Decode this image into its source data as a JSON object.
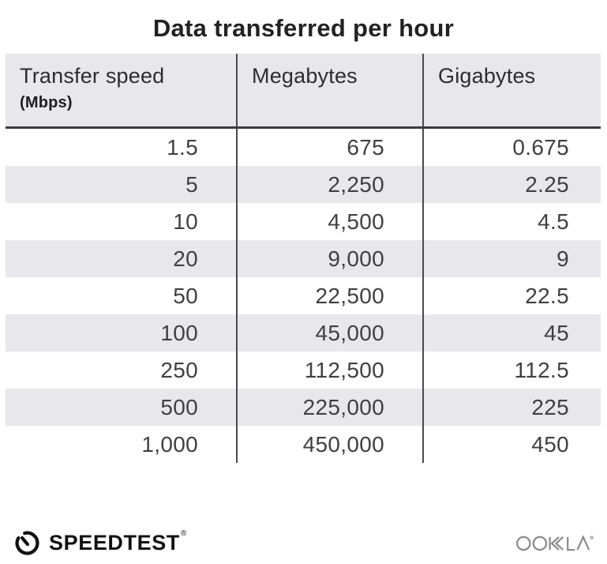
{
  "title": "Data transferred per hour",
  "table": {
    "columns": [
      {
        "label": "Transfer speed",
        "sublabel": "(Mbps)"
      },
      {
        "label": "Megabytes"
      },
      {
        "label": "Gigabytes"
      }
    ],
    "rows": [
      [
        "1.5",
        "675",
        "0.675"
      ],
      [
        "5",
        "2,250",
        "2.25"
      ],
      [
        "10",
        "4,500",
        "4.5"
      ],
      [
        "20",
        "9,000",
        "9"
      ],
      [
        "50",
        "22,500",
        "22.5"
      ],
      [
        "100",
        "45,000",
        "45"
      ],
      [
        "250",
        "112,500",
        "112.5"
      ],
      [
        "500",
        "225,000",
        "225"
      ],
      [
        "1,000",
        "450,000",
        "450"
      ]
    ]
  },
  "chart_data": {
    "type": "table",
    "title": "Data transferred per hour",
    "columns": [
      "Transfer speed (Mbps)",
      "Megabytes",
      "Gigabytes"
    ],
    "rows": [
      [
        1.5,
        675,
        0.675
      ],
      [
        5,
        2250,
        2.25
      ],
      [
        10,
        4500,
        4.5
      ],
      [
        20,
        9000,
        9
      ],
      [
        50,
        22500,
        22.5
      ],
      [
        100,
        45000,
        45
      ],
      [
        250,
        112500,
        112.5
      ],
      [
        500,
        225000,
        225
      ],
      [
        1000,
        450000,
        450
      ]
    ]
  },
  "footer": {
    "speedtest_label": "SPEEDTEST",
    "speedtest_trademark": "®",
    "speedtest_icon": "speedometer-gauge-icon",
    "ookla_label": "OOKLA",
    "ookla_trademark": "®",
    "ookla_icon": "ookla-wordmark"
  },
  "colors": {
    "title_text": "#222222",
    "header_bg": "#e8e7ec",
    "stripe": "#e8e7ec",
    "divider": "#4a4a4a",
    "header_rule": "#3c3c3c",
    "number_text": "#404040",
    "logo_black": "#111111",
    "ookla_gray": "#8b8b8b"
  }
}
